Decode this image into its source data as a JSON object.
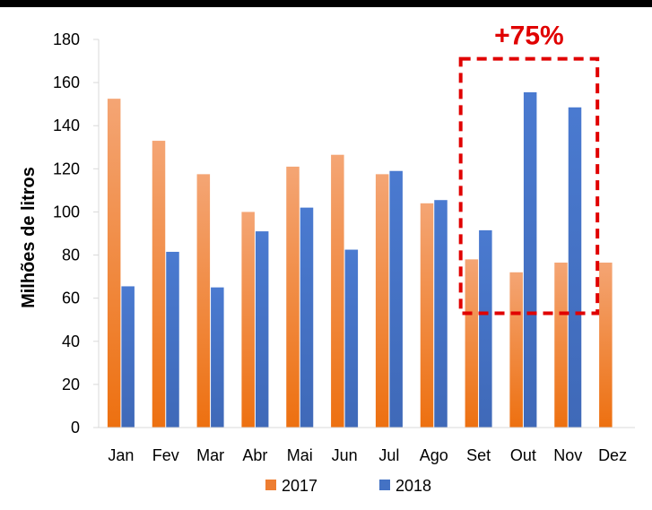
{
  "chart_data": {
    "type": "bar",
    "title": "",
    "xlabel": "",
    "ylabel": "Milhões de litros",
    "ylim": [
      0,
      180
    ],
    "yticks": [
      0,
      20,
      40,
      60,
      80,
      100,
      120,
      140,
      160,
      180
    ],
    "grid": false,
    "legend_position": "bottom",
    "categories": [
      "Jan",
      "Fev",
      "Mar",
      "Abr",
      "Mai",
      "Jun",
      "Jul",
      "Ago",
      "Set",
      "Out",
      "Nov",
      "Dez"
    ],
    "series": [
      {
        "name": "2017",
        "color": "#ED7D31",
        "values": [
          152.5,
          133,
          117.5,
          100,
          121,
          126.5,
          117.5,
          104,
          78,
          72,
          76.5,
          76.5
        ]
      },
      {
        "name": "2018",
        "color": "#4472C4",
        "values": [
          65.5,
          81.5,
          65,
          91,
          102,
          82.5,
          119,
          105.5,
          91.5,
          155.5,
          148.5,
          null
        ]
      }
    ],
    "annotation": {
      "text": "+75%",
      "color": "#E00000",
      "highlighted_categories": [
        "Set",
        "Out",
        "Nov"
      ],
      "box_y_range": [
        53,
        171
      ]
    }
  }
}
